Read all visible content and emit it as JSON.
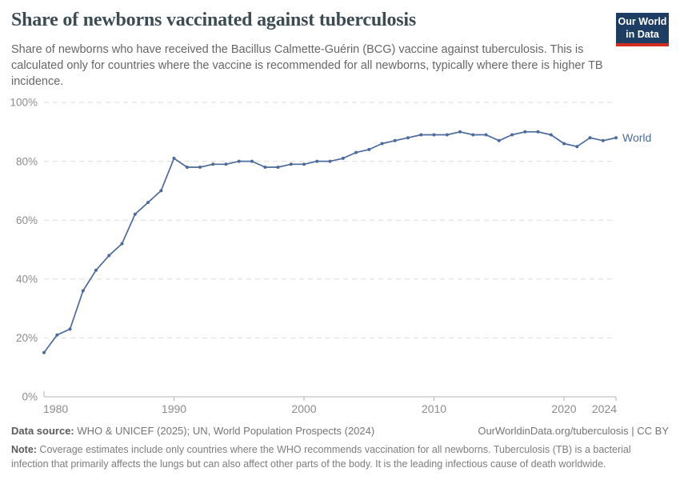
{
  "header": {
    "title": "Share of newborns vaccinated against tuberculosis",
    "subtitle": "Share of newborns who have received the Bacillus Calmette-Guérin (BCG) vaccine against tuberculosis. This is calculated only for countries where the vaccine is recommended for all newborns, typically where there is higher TB incidence.",
    "logo": {
      "line1": "Our World",
      "line2": "in Data",
      "bg_color": "#1d3d63",
      "accent_color": "#d42b21"
    }
  },
  "chart_data": {
    "type": "line",
    "title": "Share of newborns vaccinated against tuberculosis",
    "x": [
      1980,
      1981,
      1982,
      1983,
      1984,
      1985,
      1986,
      1987,
      1988,
      1989,
      1990,
      1991,
      1992,
      1993,
      1994,
      1995,
      1996,
      1997,
      1998,
      1999,
      2000,
      2001,
      2002,
      2003,
      2004,
      2005,
      2006,
      2007,
      2008,
      2009,
      2010,
      2011,
      2012,
      2013,
      2014,
      2015,
      2016,
      2017,
      2018,
      2019,
      2020,
      2021,
      2022,
      2023,
      2024
    ],
    "series": [
      {
        "name": "World",
        "color": "#4c6a9c",
        "values": [
          15,
          21,
          23,
          36,
          43,
          48,
          52,
          62,
          66,
          70,
          81,
          78,
          78,
          79,
          79,
          80,
          80,
          78,
          78,
          79,
          79,
          80,
          80,
          81,
          83,
          84,
          86,
          87,
          88,
          89,
          89,
          89,
          90,
          89,
          89,
          87,
          89,
          90,
          90,
          89,
          86,
          85,
          88,
          87,
          88
        ]
      }
    ],
    "xlabel": "",
    "ylabel": "",
    "xlim": [
      1980,
      2024
    ],
    "ylim": [
      0,
      100
    ],
    "x_tick_labels": [
      "1980",
      "1990",
      "2000",
      "2010",
      "2020",
      "2024"
    ],
    "x_tick_values": [
      1980,
      1990,
      2000,
      2010,
      2020,
      2024
    ],
    "y_tick_labels": [
      "0%",
      "20%",
      "40%",
      "60%",
      "80%",
      "100%"
    ],
    "y_tick_values": [
      0,
      20,
      40,
      60,
      80,
      100
    ],
    "grid": "horizontal-dashed",
    "legend_position": "end-of-line",
    "end_label": "World",
    "colors": {
      "line": "#4c6a9c",
      "gridline": "#dcdcdc",
      "axis": "#b3b3b3",
      "tick_text": "#8c8c8c"
    }
  },
  "footer": {
    "datasource_label": "Data source:",
    "datasource_text": " WHO & UNICEF (2025); UN, World Population Prospects (2024)",
    "license_text": "OurWorldinData.org/tuberculosis | CC BY",
    "note_label": "Note:",
    "note_text": " Coverage estimates include only countries where the WHO recommends vaccination for all newborns. Tuberculosis (TB) is a bacterial infection that primarily affects the lungs but can also affect other parts of the body. It is the leading infectious cause of death worldwide."
  }
}
